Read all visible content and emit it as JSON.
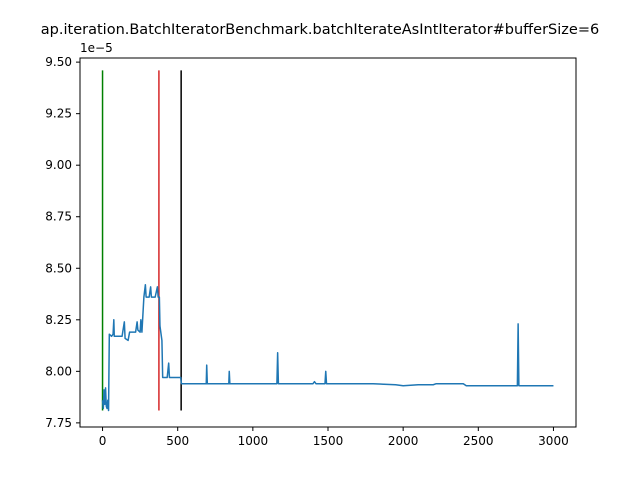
{
  "chart_data": {
    "type": "line",
    "title": "ap.iteration.BatchIteratorBenchmark.batchIterateAsIntIterator#bufferSize=6",
    "y_offset_label": "1e−5",
    "xlim": [
      -150,
      3150
    ],
    "ylim": [
      7.73,
      9.52
    ],
    "x_ticks": [
      0,
      500,
      1000,
      1500,
      2000,
      2500,
      3000
    ],
    "y_ticks": [
      7.75,
      8.0,
      8.25,
      8.5,
      8.75,
      9.0,
      9.25,
      9.5
    ],
    "y_tick_labels": [
      "7.75",
      "8.00",
      "8.25",
      "8.50",
      "8.75",
      "9.00",
      "9.25",
      "9.50"
    ],
    "grid": false,
    "series": [
      {
        "color": "#1f77b4",
        "points": [
          [
            0,
            7.86
          ],
          [
            5,
            7.82
          ],
          [
            10,
            7.91
          ],
          [
            15,
            7.84
          ],
          [
            20,
            7.92
          ],
          [
            25,
            7.83
          ],
          [
            30,
            7.82
          ],
          [
            35,
            7.86
          ],
          [
            40,
            7.81
          ],
          [
            45,
            8.18
          ],
          [
            60,
            8.17
          ],
          [
            70,
            8.18
          ],
          [
            75,
            8.25
          ],
          [
            78,
            8.17
          ],
          [
            100,
            8.17
          ],
          [
            130,
            8.17
          ],
          [
            145,
            8.24
          ],
          [
            150,
            8.16
          ],
          [
            170,
            8.15
          ],
          [
            180,
            8.19
          ],
          [
            220,
            8.19
          ],
          [
            230,
            8.24
          ],
          [
            235,
            8.2
          ],
          [
            250,
            8.19
          ],
          [
            255,
            8.25
          ],
          [
            262,
            8.19
          ],
          [
            275,
            8.36
          ],
          [
            285,
            8.42
          ],
          [
            290,
            8.36
          ],
          [
            310,
            8.36
          ],
          [
            320,
            8.41
          ],
          [
            325,
            8.36
          ],
          [
            350,
            8.36
          ],
          [
            365,
            8.41
          ],
          [
            370,
            8.36
          ],
          [
            378,
            8.36
          ],
          [
            382,
            8.22
          ],
          [
            395,
            8.15
          ],
          [
            400,
            7.97
          ],
          [
            430,
            7.97
          ],
          [
            440,
            8.04
          ],
          [
            445,
            7.97
          ],
          [
            520,
            7.97
          ],
          [
            525,
            7.94
          ],
          [
            600,
            7.94
          ],
          [
            690,
            7.94
          ],
          [
            693,
            8.03
          ],
          [
            697,
            7.94
          ],
          [
            840,
            7.94
          ],
          [
            843,
            8.0
          ],
          [
            847,
            7.94
          ],
          [
            1000,
            7.94
          ],
          [
            1160,
            7.94
          ],
          [
            1165,
            8.09
          ],
          [
            1170,
            7.94
          ],
          [
            1300,
            7.94
          ],
          [
            1400,
            7.94
          ],
          [
            1410,
            7.95
          ],
          [
            1420,
            7.94
          ],
          [
            1480,
            7.94
          ],
          [
            1485,
            8.0
          ],
          [
            1490,
            7.94
          ],
          [
            1650,
            7.94
          ],
          [
            1800,
            7.94
          ],
          [
            1950,
            7.935
          ],
          [
            2000,
            7.93
          ],
          [
            2100,
            7.935
          ],
          [
            2200,
            7.935
          ],
          [
            2220,
            7.94
          ],
          [
            2400,
            7.94
          ],
          [
            2420,
            7.93
          ],
          [
            2500,
            7.93
          ],
          [
            2700,
            7.93
          ],
          [
            2760,
            7.93
          ],
          [
            2765,
            8.23
          ],
          [
            2770,
            7.93
          ],
          [
            2900,
            7.93
          ],
          [
            3000,
            7.93
          ]
        ]
      }
    ],
    "vertical_lines": [
      {
        "x": 0,
        "y0": 7.81,
        "y1": 9.46,
        "color": "#008000"
      },
      {
        "x": 375,
        "y0": 7.81,
        "y1": 9.46,
        "color": "#d62728"
      },
      {
        "x": 523,
        "y0": 7.81,
        "y1": 9.46,
        "color": "#000000"
      }
    ]
  }
}
